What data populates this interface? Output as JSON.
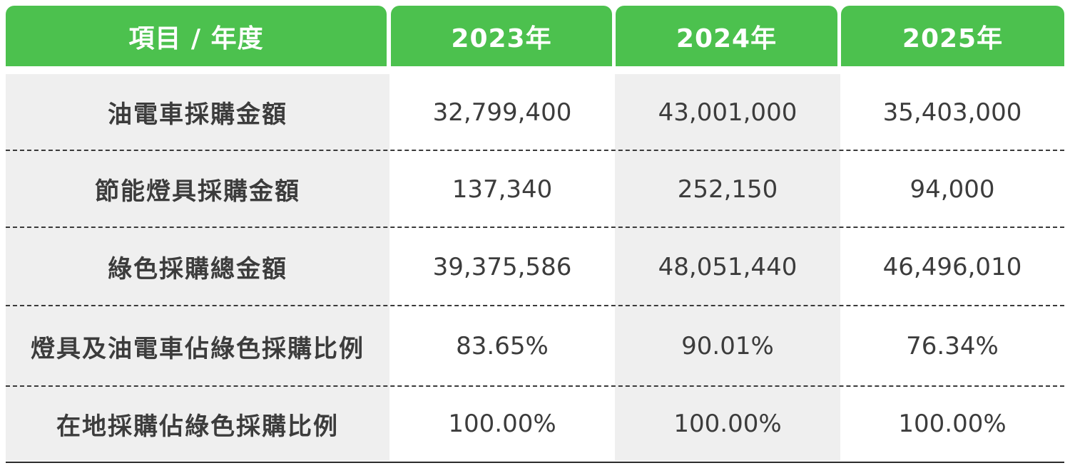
{
  "table": {
    "header": [
      "項目 / 年度",
      "2023年",
      "2024年",
      "2025年"
    ],
    "rows": [
      {
        "label": "油電車採購金額",
        "values": [
          "32,799,400",
          "43,001,000",
          "35,403,000"
        ]
      },
      {
        "label": "節能燈具採購金額",
        "values": [
          "137,340",
          "252,150",
          "94,000"
        ]
      },
      {
        "label": "綠色採購總金額",
        "values": [
          "39,375,586",
          "48,051,440",
          "46,496,010"
        ]
      },
      {
        "label": "燈具及油電車佔綠色採購比例",
        "values": [
          "83.65%",
          "90.01%",
          "76.34%"
        ]
      },
      {
        "label": "在地採購佔綠色採購比例",
        "values": [
          "100.00%",
          "100.00%",
          "100.00%"
        ]
      }
    ]
  },
  "colors": {
    "header_bg": "#4cc14e",
    "header_text": "#ffffff",
    "shade_bg": "#efefef",
    "body_text": "#3c3c3c"
  }
}
